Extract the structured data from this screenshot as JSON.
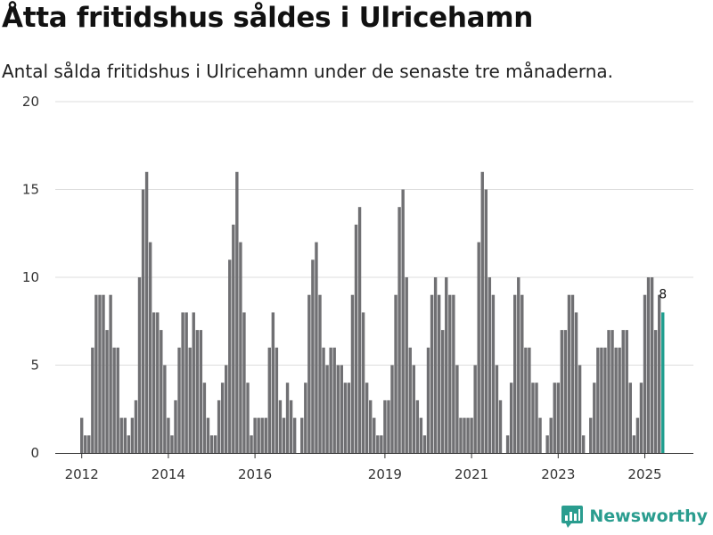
{
  "title": "Åtta fritidshus såldes i Ulricehamn",
  "subtitle": "Antal sålda fritidshus i Ulricehamn under de senaste tre månaderna.",
  "brand": {
    "name": "Newsworthy",
    "icon": "newsworthy-logo-icon"
  },
  "colors": {
    "bar": "#707073",
    "highlight": "#1f9e8f",
    "grid": "#dddddd",
    "brand": "#2a9d8f"
  },
  "chart_data": {
    "type": "bar",
    "title": "Åtta fritidshus såldes i Ulricehamn",
    "subtitle": "Antal sålda fritidshus i Ulricehamn under de senaste tre månaderna.",
    "xlabel": "",
    "ylabel": "",
    "ylim": [
      0,
      20
    ],
    "yticks": [
      0,
      5,
      10,
      15,
      20
    ],
    "x_start": "2012-01",
    "x_end": "2025-10",
    "xticks": [
      {
        "label": "2012",
        "date": "2012-01"
      },
      {
        "label": "2014",
        "date": "2014-01"
      },
      {
        "label": "2016",
        "date": "2016-01"
      },
      {
        "label": "2019",
        "date": "2019-01"
      },
      {
        "label": "2021",
        "date": "2021-01"
      },
      {
        "label": "2023",
        "date": "2023-01"
      },
      {
        "label": "2025",
        "date": "2025-01"
      }
    ],
    "grid": true,
    "legend": "none",
    "highlight_label": "8",
    "values": [
      2,
      1,
      1,
      6,
      9,
      9,
      9,
      7,
      9,
      6,
      6,
      2,
      2,
      1,
      2,
      3,
      10,
      15,
      16,
      12,
      8,
      8,
      7,
      5,
      2,
      1,
      3,
      6,
      8,
      8,
      6,
      8,
      7,
      7,
      4,
      2,
      1,
      1,
      3,
      4,
      5,
      11,
      13,
      16,
      12,
      8,
      4,
      1,
      2,
      2,
      2,
      2,
      6,
      8,
      6,
      3,
      2,
      4,
      3,
      2,
      0,
      2,
      4,
      9,
      11,
      12,
      9,
      6,
      5,
      6,
      6,
      5,
      5,
      4,
      4,
      9,
      13,
      14,
      8,
      4,
      3,
      2,
      1,
      1,
      3,
      3,
      5,
      9,
      14,
      15,
      10,
      6,
      5,
      3,
      2,
      1,
      6,
      9,
      10,
      9,
      7,
      10,
      9,
      9,
      5,
      2,
      2,
      2,
      2,
      5,
      12,
      16,
      15,
      10,
      9,
      5,
      3,
      0,
      1,
      4,
      9,
      10,
      9,
      6,
      6,
      4,
      4,
      2,
      0,
      1,
      2,
      4,
      4,
      7,
      7,
      9,
      9,
      8,
      5,
      1,
      0,
      2,
      4,
      6,
      6,
      6,
      7,
      7,
      6,
      6,
      7,
      7,
      4,
      1,
      2,
      4,
      9,
      10,
      10,
      7,
      9,
      8
    ]
  }
}
